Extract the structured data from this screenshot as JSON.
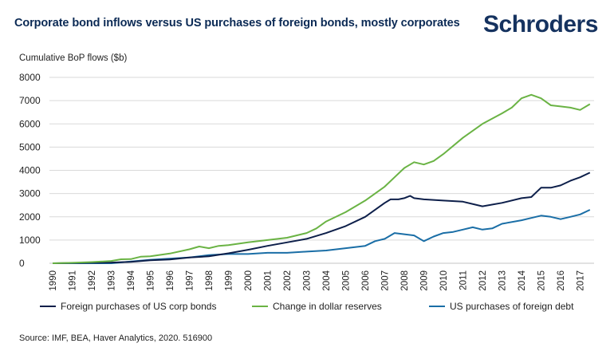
{
  "header": {
    "title": "Corporate bond inflows versus US purchases of foreign bonds, mostly corporates",
    "logo_text": "Schroders"
  },
  "footer": {
    "source": "Source: IMF, BEA, Haver Analytics, 2020. 516900"
  },
  "colors": {
    "title": "#0b2a55",
    "logo": "#15325f",
    "grid": "#d9d9d9"
  },
  "chart_data": {
    "type": "line",
    "title": "Corporate bond inflows versus US purchases of foreign bonds, mostly corporates",
    "xlabel": "",
    "ylabel": "Cumulative BoP flows ($b)",
    "xlim": [
      1990,
      2018
    ],
    "ylim": [
      0,
      8000
    ],
    "grid": true,
    "legend_position": "bottom",
    "x_ticks": [
      "1990",
      "1991",
      "1992",
      "1993",
      "1994",
      "1995",
      "1996",
      "1997",
      "1998",
      "1999",
      "2000",
      "2001",
      "2002",
      "2003",
      "2004",
      "2005",
      "2006",
      "2007",
      "2008",
      "2009",
      "2010",
      "2011",
      "2012",
      "2013",
      "2014",
      "2015",
      "2016",
      "2017"
    ],
    "y_ticks": [
      "0",
      "1000",
      "2000",
      "3000",
      "4000",
      "5000",
      "6000",
      "7000",
      "8000"
    ],
    "series": [
      {
        "name": "Foreign purchases of US corp bonds",
        "color": "#0d1f4a",
        "x": [
          1990,
          1992,
          1993,
          1994,
          1995,
          1996,
          1997,
          1998,
          1999,
          2000,
          2001,
          2002,
          2003,
          2004,
          2005,
          2006,
          2007,
          2007.3,
          2007.7,
          2008,
          2008.3,
          2008.5,
          2009,
          2010,
          2011,
          2012,
          2013,
          2014,
          2014.5,
          2015,
          2015.5,
          2016,
          2016.5,
          2017,
          2017.5
        ],
        "values": [
          0,
          20,
          30,
          60,
          130,
          160,
          250,
          300,
          430,
          580,
          750,
          900,
          1050,
          1300,
          1600,
          2000,
          2600,
          2750,
          2750,
          2800,
          2900,
          2800,
          2750,
          2700,
          2650,
          2450,
          2600,
          2800,
          2850,
          3250,
          3250,
          3350,
          3550,
          3700,
          3900
        ]
      },
      {
        "name": "Change in dollar reserves",
        "color": "#6ab344",
        "x": [
          1990,
          1991,
          1992,
          1993,
          1993.5,
          1994,
          1994.5,
          1995,
          1996,
          1997,
          1997.5,
          1998,
          1998.5,
          1999,
          2000,
          2001,
          2002,
          2003,
          2003.5,
          2004,
          2005,
          2006,
          2007,
          2007.5,
          2008,
          2008.5,
          2009,
          2009.5,
          2010,
          2011,
          2012,
          2013,
          2013.5,
          2014,
          2014.5,
          2015,
          2015.5,
          2016,
          2016.5,
          2017,
          2017.5
        ],
        "values": [
          0,
          20,
          50,
          100,
          170,
          180,
          280,
          300,
          420,
          600,
          720,
          650,
          750,
          780,
          900,
          1000,
          1100,
          1300,
          1500,
          1800,
          2200,
          2700,
          3300,
          3700,
          4100,
          4350,
          4250,
          4400,
          4700,
          5400,
          6000,
          6450,
          6700,
          7100,
          7250,
          7100,
          6800,
          6750,
          6700,
          6600,
          6850
        ]
      },
      {
        "name": "US purchases of foreign debt",
        "color": "#1a6ea6",
        "x": [
          1990,
          1993,
          1995,
          1997,
          1998,
          1999,
          2000,
          2001,
          2002,
          2003,
          2004,
          2005,
          2006,
          2006.5,
          2007,
          2007.5,
          2008,
          2008.5,
          2009,
          2009.5,
          2010,
          2010.5,
          2011,
          2011.5,
          2012,
          2012.5,
          2013,
          2014,
          2014.5,
          2015,
          2015.5,
          2016,
          2016.5,
          2017,
          2017.5
        ],
        "values": [
          0,
          0,
          150,
          250,
          350,
          400,
          400,
          450,
          450,
          500,
          550,
          650,
          750,
          950,
          1050,
          1300,
          1250,
          1200,
          950,
          1150,
          1300,
          1350,
          1450,
          1550,
          1450,
          1500,
          1700,
          1850,
          1950,
          2050,
          2000,
          1900,
          2000,
          2100,
          2300
        ]
      }
    ]
  }
}
